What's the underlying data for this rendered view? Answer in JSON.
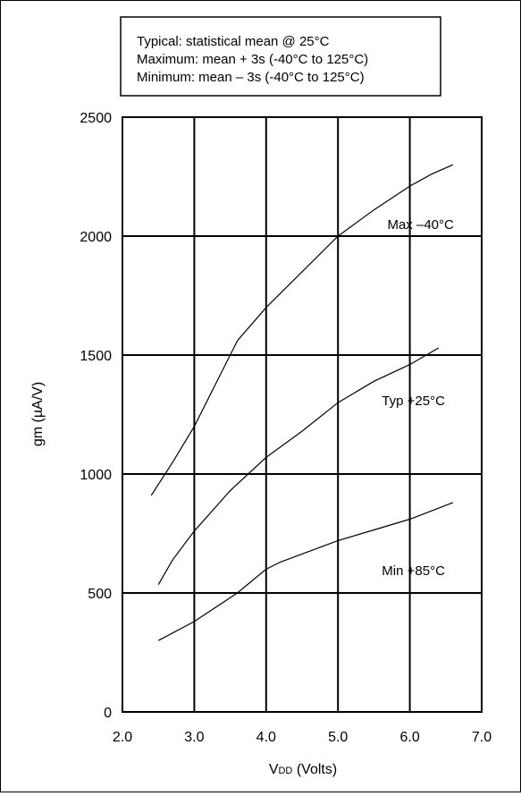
{
  "chart_data": {
    "type": "line",
    "title": "",
    "legend_lines": [
      "Typical:  statistical mean @ 25°C",
      "Maximum:  mean + 3s (-40°C to 125°C)",
      "Minimum:   mean – 3s (-40°C to 125°C)"
    ],
    "xlabel_main": "V",
    "xlabel_sub": "DD",
    "xlabel_rest": " (Volts)",
    "ylabel": "gm (µA/V)",
    "xlim": [
      2.0,
      7.0
    ],
    "ylim": [
      0,
      2500
    ],
    "x_ticks": [
      2.0,
      3.0,
      4.0,
      5.0,
      6.0,
      7.0
    ],
    "x_tick_labels": [
      "2.0",
      "3.0",
      "4.0",
      "5.0",
      "6.0",
      "7.0"
    ],
    "y_ticks": [
      0,
      500,
      1000,
      1500,
      2000,
      2500
    ],
    "y_tick_labels": [
      "0",
      "500",
      "1000",
      "1500",
      "2000",
      "2500"
    ],
    "grid": true,
    "series": [
      {
        "name": "Max –40°C",
        "label_x": 6.15,
        "label_y": 2030,
        "x": [
          2.4,
          2.7,
          3.0,
          3.3,
          3.6,
          4.0,
          4.2,
          4.5,
          5.0,
          5.5,
          6.0,
          6.3,
          6.6
        ],
        "y": [
          910,
          1050,
          1200,
          1380,
          1560,
          1700,
          1760,
          1850,
          2000,
          2110,
          2210,
          2260,
          2300
        ]
      },
      {
        "name": "Typ +25°C",
        "label_x": 6.05,
        "label_y": 1290,
        "x": [
          2.5,
          2.7,
          3.0,
          3.5,
          4.0,
          4.5,
          5.0,
          5.5,
          6.0,
          6.4
        ],
        "y": [
          535,
          640,
          760,
          930,
          1070,
          1180,
          1300,
          1390,
          1460,
          1530
        ]
      },
      {
        "name": "Min +85°C",
        "label_x": 6.05,
        "label_y": 575,
        "x": [
          2.5,
          3.0,
          3.6,
          4.0,
          4.2,
          5.0,
          5.5,
          6.0,
          6.6
        ],
        "y": [
          300,
          380,
          500,
          600,
          630,
          720,
          765,
          810,
          880
        ]
      }
    ]
  }
}
